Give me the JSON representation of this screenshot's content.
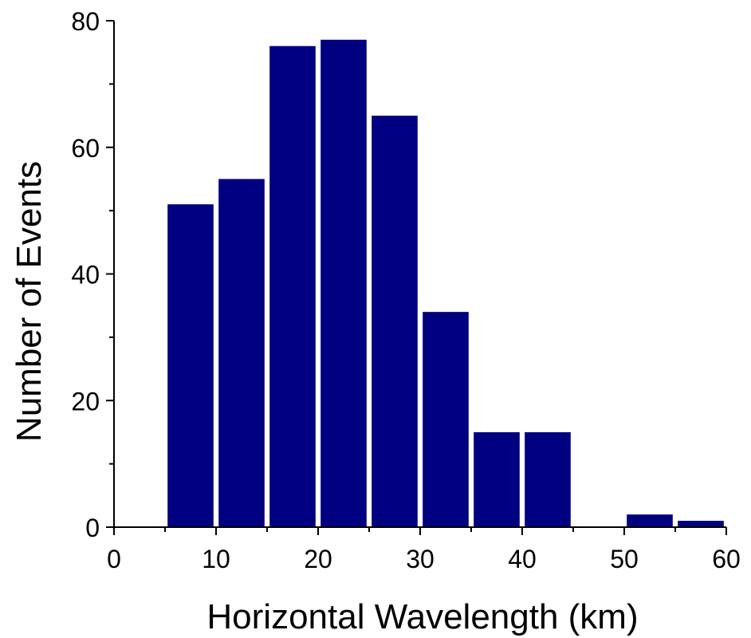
{
  "chart_data": {
    "type": "bar",
    "xlabel": "Horizontal Wavelength (km)",
    "ylabel": "Number of Events",
    "xlim": [
      0,
      60
    ],
    "ylim": [
      0,
      80
    ],
    "x_ticks": [
      0,
      10,
      20,
      30,
      40,
      50,
      60
    ],
    "y_ticks": [
      0,
      20,
      40,
      60,
      80
    ],
    "bin_width": 5,
    "x": [
      7.5,
      12.5,
      17.5,
      22.5,
      27.5,
      32.5,
      37.5,
      42.5,
      47.5,
      52.5,
      57.5
    ],
    "values": [
      51,
      55,
      76,
      77,
      65,
      34,
      15,
      15,
      0,
      2,
      1
    ],
    "bar_color": "#000080",
    "grid": false,
    "legend": false
  }
}
